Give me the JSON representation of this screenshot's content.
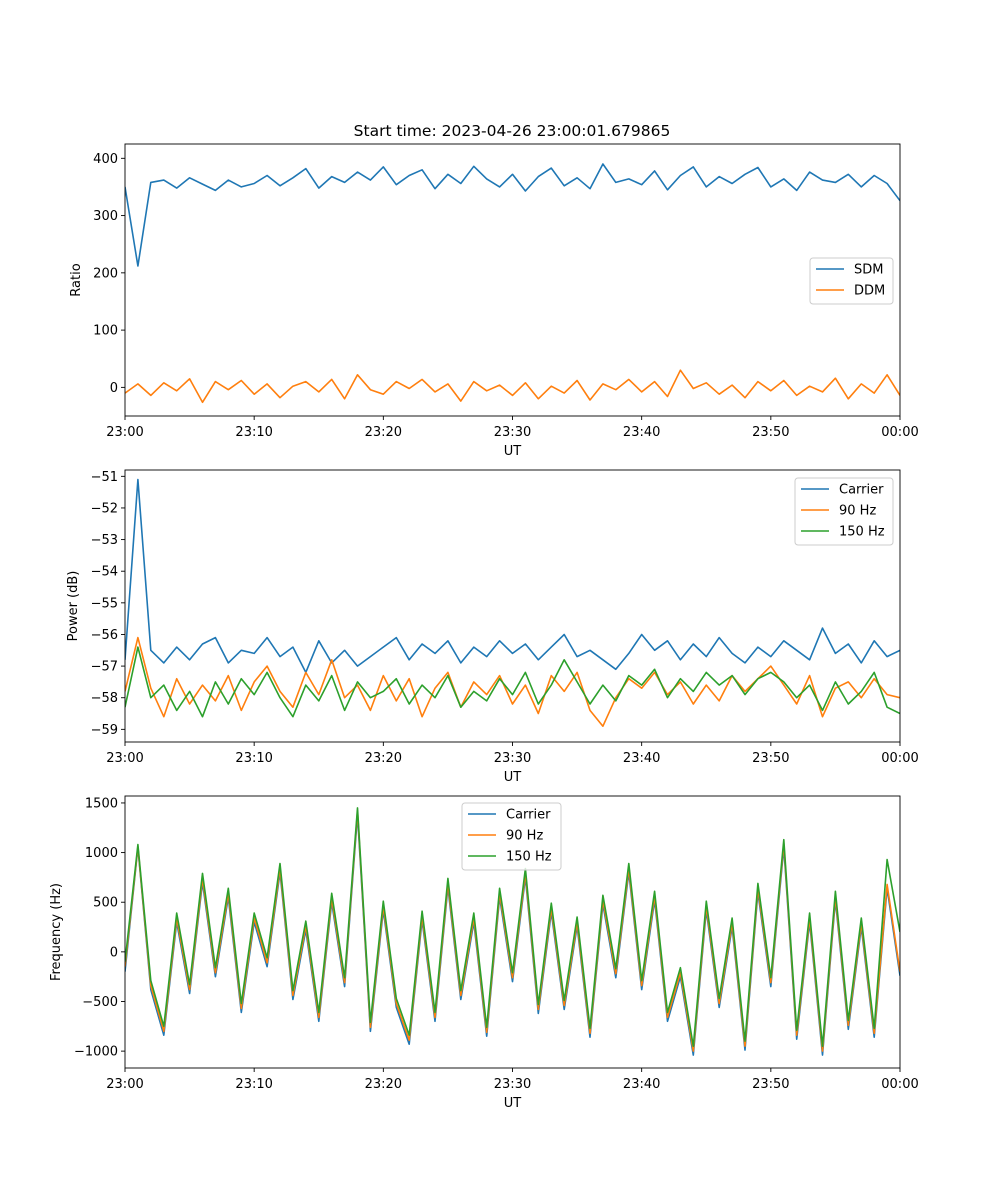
{
  "figure": {
    "title": "Start time: 2023-04-26 23:00:01.679865"
  },
  "colors": {
    "blue": "#1f77b4",
    "orange": "#ff7f0e",
    "green": "#2ca02c"
  },
  "chart_data": [
    {
      "type": "line",
      "title": "Start time: 2023-04-26 23:00:01.679865",
      "xlabel": "UT",
      "ylabel": "Ratio",
      "xlim": [
        "23:00",
        "00:00"
      ],
      "x_ticks": [
        "23:00",
        "23:10",
        "23:20",
        "23:30",
        "23:40",
        "23:50",
        "00:00"
      ],
      "ylim": [
        -50,
        425
      ],
      "y_ticks": [
        0,
        100,
        200,
        300,
        400
      ],
      "y_tick_labels": [
        "0",
        "100",
        "200",
        "300",
        "400"
      ],
      "legend": "center-right",
      "x": [
        "23:00",
        "23:01",
        "23:02",
        "23:03",
        "23:04",
        "23:05",
        "23:06",
        "23:07",
        "23:08",
        "23:09",
        "23:10",
        "23:11",
        "23:12",
        "23:13",
        "23:14",
        "23:15",
        "23:16",
        "23:17",
        "23:18",
        "23:19",
        "23:20",
        "23:21",
        "23:22",
        "23:23",
        "23:24",
        "23:25",
        "23:26",
        "23:27",
        "23:28",
        "23:29",
        "23:30",
        "23:31",
        "23:32",
        "23:33",
        "23:34",
        "23:35",
        "23:36",
        "23:37",
        "23:38",
        "23:39",
        "23:40",
        "23:41",
        "23:42",
        "23:43",
        "23:44",
        "23:45",
        "23:46",
        "23:47",
        "23:48",
        "23:49",
        "23:50",
        "23:51",
        "23:52",
        "23:53",
        "23:54",
        "23:55",
        "23:56",
        "23:57",
        "23:58",
        "23:59",
        "00:00"
      ],
      "series": [
        {
          "name": "SDM",
          "color": "#1f77b4",
          "values": [
            350,
            212,
            358,
            362,
            348,
            366,
            355,
            344,
            362,
            350,
            356,
            370,
            352,
            366,
            382,
            348,
            368,
            358,
            376,
            362,
            385,
            354,
            370,
            380,
            347,
            372,
            356,
            386,
            364,
            350,
            372,
            343,
            368,
            383,
            352,
            366,
            347,
            390,
            358,
            364,
            354,
            378,
            345,
            370,
            385,
            350,
            368,
            356,
            372,
            384,
            350,
            364,
            344,
            376,
            362,
            358,
            372,
            350,
            370,
            356,
            326
          ]
        },
        {
          "name": "DDM",
          "color": "#ff7f0e",
          "values": [
            -10,
            6,
            -14,
            8,
            -6,
            15,
            -26,
            10,
            -4,
            12,
            -12,
            6,
            -18,
            2,
            10,
            -8,
            14,
            -20,
            22,
            -4,
            -12,
            10,
            -2,
            14,
            -8,
            6,
            -24,
            10,
            -6,
            4,
            -14,
            8,
            -20,
            2,
            -10,
            12,
            -22,
            6,
            -4,
            14,
            -8,
            10,
            -16,
            30,
            -2,
            8,
            -12,
            4,
            -18,
            10,
            -6,
            12,
            -14,
            2,
            -8,
            16,
            -20,
            6,
            -10,
            22,
            -14
          ]
        }
      ]
    },
    {
      "type": "line",
      "xlabel": "UT",
      "ylabel": "Power (dB)",
      "xlim": [
        "23:00",
        "00:00"
      ],
      "x_ticks": [
        "23:00",
        "23:10",
        "23:20",
        "23:30",
        "23:40",
        "23:50",
        "00:00"
      ],
      "ylim": [
        -59.4,
        -50.8
      ],
      "y_ticks": [
        -59,
        -58,
        -57,
        -56,
        -55,
        -54,
        -53,
        -52,
        -51
      ],
      "y_tick_labels": [
        "−59",
        "−58",
        "−57",
        "−56",
        "−55",
        "−54",
        "−53",
        "−52",
        "−51"
      ],
      "legend": "top-right",
      "x": [
        "23:00",
        "23:01",
        "23:02",
        "23:03",
        "23:04",
        "23:05",
        "23:06",
        "23:07",
        "23:08",
        "23:09",
        "23:10",
        "23:11",
        "23:12",
        "23:13",
        "23:14",
        "23:15",
        "23:16",
        "23:17",
        "23:18",
        "23:19",
        "23:20",
        "23:21",
        "23:22",
        "23:23",
        "23:24",
        "23:25",
        "23:26",
        "23:27",
        "23:28",
        "23:29",
        "23:30",
        "23:31",
        "23:32",
        "23:33",
        "23:34",
        "23:35",
        "23:36",
        "23:37",
        "23:38",
        "23:39",
        "23:40",
        "23:41",
        "23:42",
        "23:43",
        "23:44",
        "23:45",
        "23:46",
        "23:47",
        "23:48",
        "23:49",
        "23:50",
        "23:51",
        "23:52",
        "23:53",
        "23:54",
        "23:55",
        "23:56",
        "23:57",
        "23:58",
        "23:59",
        "00:00"
      ],
      "series": [
        {
          "name": "Carrier",
          "color": "#1f77b4",
          "values": [
            -56.8,
            -51.1,
            -56.5,
            -56.9,
            -56.4,
            -56.8,
            -56.3,
            -56.1,
            -56.9,
            -56.5,
            -56.6,
            -56.1,
            -56.7,
            -56.4,
            -57.2,
            -56.2,
            -56.9,
            -56.5,
            -57.0,
            -56.7,
            -56.4,
            -56.1,
            -56.8,
            -56.3,
            -56.6,
            -56.2,
            -56.9,
            -56.4,
            -56.7,
            -56.2,
            -56.6,
            -56.3,
            -56.8,
            -56.4,
            -56.0,
            -56.7,
            -56.5,
            -56.8,
            -57.1,
            -56.6,
            -56.0,
            -56.5,
            -56.2,
            -56.8,
            -56.3,
            -56.7,
            -56.1,
            -56.6,
            -56.9,
            -56.4,
            -56.7,
            -56.2,
            -56.5,
            -56.8,
            -55.8,
            -56.6,
            -56.3,
            -56.9,
            -56.2,
            -56.7,
            -56.5
          ]
        },
        {
          "name": "90 Hz",
          "color": "#ff7f0e",
          "values": [
            -57.8,
            -56.1,
            -57.7,
            -58.6,
            -57.4,
            -58.2,
            -57.6,
            -58.1,
            -57.3,
            -58.4,
            -57.5,
            -57.0,
            -57.8,
            -58.3,
            -57.2,
            -57.9,
            -56.8,
            -58.0,
            -57.6,
            -58.4,
            -57.3,
            -58.1,
            -57.4,
            -58.6,
            -57.7,
            -57.2,
            -58.3,
            -57.5,
            -57.9,
            -57.3,
            -58.2,
            -57.6,
            -58.5,
            -57.3,
            -57.8,
            -57.2,
            -58.4,
            -58.9,
            -58.0,
            -57.4,
            -57.7,
            -57.2,
            -57.9,
            -57.5,
            -58.2,
            -57.6,
            -58.1,
            -57.3,
            -57.8,
            -57.4,
            -57.0,
            -57.6,
            -58.2,
            -57.3,
            -58.6,
            -57.7,
            -57.5,
            -58.0,
            -57.4,
            -57.9,
            -58.0
          ]
        },
        {
          "name": "150 Hz",
          "color": "#2ca02c",
          "values": [
            -58.3,
            -56.4,
            -58.0,
            -57.6,
            -58.4,
            -57.8,
            -58.6,
            -57.5,
            -58.2,
            -57.4,
            -57.9,
            -57.2,
            -58.0,
            -58.6,
            -57.6,
            -58.1,
            -57.3,
            -58.4,
            -57.5,
            -58.0,
            -57.8,
            -57.4,
            -58.2,
            -57.6,
            -58.0,
            -57.3,
            -58.3,
            -57.8,
            -58.1,
            -57.4,
            -57.9,
            -57.2,
            -58.2,
            -57.6,
            -56.8,
            -57.5,
            -58.2,
            -57.6,
            -58.1,
            -57.3,
            -57.6,
            -57.1,
            -58.0,
            -57.4,
            -57.8,
            -57.2,
            -57.6,
            -57.3,
            -57.9,
            -57.4,
            -57.2,
            -57.5,
            -58.0,
            -57.6,
            -58.4,
            -57.5,
            -58.2,
            -57.8,
            -57.2,
            -58.3,
            -58.5
          ]
        }
      ]
    },
    {
      "type": "line",
      "xlabel": "UT",
      "ylabel": "Frequency (Hz)",
      "xlim": [
        "23:00",
        "00:00"
      ],
      "x_ticks": [
        "23:00",
        "23:10",
        "23:20",
        "23:30",
        "23:40",
        "23:50",
        "00:00"
      ],
      "ylim": [
        -1170,
        1570
      ],
      "y_ticks": [
        -1000,
        -500,
        0,
        500,
        1000,
        1500
      ],
      "y_tick_labels": [
        "−1000",
        "−500",
        "0",
        "500",
        "1000",
        "1500"
      ],
      "legend": "top-center",
      "x": [
        "23:00",
        "23:01",
        "23:02",
        "23:03",
        "23:04",
        "23:05",
        "23:06",
        "23:07",
        "23:08",
        "23:09",
        "23:10",
        "23:11",
        "23:12",
        "23:13",
        "23:14",
        "23:15",
        "23:16",
        "23:17",
        "23:18",
        "23:19",
        "23:20",
        "23:21",
        "23:22",
        "23:23",
        "23:24",
        "23:25",
        "23:26",
        "23:27",
        "23:28",
        "23:29",
        "23:30",
        "23:31",
        "23:32",
        "23:33",
        "23:34",
        "23:35",
        "23:36",
        "23:37",
        "23:38",
        "23:39",
        "23:40",
        "23:41",
        "23:42",
        "23:43",
        "23:44",
        "23:45",
        "23:46",
        "23:47",
        "23:48",
        "23:49",
        "23:50",
        "23:51",
        "23:52",
        "23:53",
        "23:54",
        "23:55",
        "23:56",
        "23:57",
        "23:58",
        "23:59",
        "00:00"
      ],
      "series": [
        {
          "name": "Carrier",
          "color": "#1f77b4",
          "values": [
            -200,
            1050,
            -380,
            -840,
            300,
            -420,
            700,
            -250,
            550,
            -610,
            300,
            -150,
            800,
            -480,
            220,
            -700,
            500,
            -350,
            1380,
            -800,
            420,
            -560,
            -930,
            320,
            -700,
            650,
            -480,
            300,
            -850,
            550,
            -300,
            750,
            -620,
            400,
            -580,
            260,
            -860,
            480,
            -260,
            800,
            -380,
            520,
            -700,
            -250,
            -1040,
            420,
            -560,
            250,
            -990,
            600,
            -350,
            1050,
            -880,
            300,
            -1040,
            520,
            -780,
            250,
            -860,
            640,
            -240
          ]
        },
        {
          "name": "90 Hz",
          "color": "#ff7f0e",
          "values": [
            -150,
            1060,
            -340,
            -800,
            340,
            -380,
            740,
            -210,
            590,
            -570,
            340,
            -110,
            840,
            -440,
            260,
            -660,
            540,
            -310,
            1420,
            -760,
            460,
            -520,
            -890,
            360,
            -660,
            690,
            -440,
            340,
            -810,
            590,
            -260,
            790,
            -580,
            440,
            -540,
            300,
            -820,
            520,
            -220,
            840,
            -340,
            560,
            -660,
            -210,
            -1000,
            460,
            -520,
            290,
            -950,
            640,
            -310,
            1090,
            -840,
            340,
            -1000,
            560,
            -740,
            290,
            -820,
            680,
            -200
          ]
        },
        {
          "name": "150 Hz",
          "color": "#2ca02c",
          "values": [
            -100,
            1080,
            -290,
            -750,
            390,
            -330,
            790,
            -160,
            640,
            -520,
            390,
            -60,
            890,
            -390,
            310,
            -610,
            590,
            -260,
            1450,
            -710,
            510,
            -470,
            -840,
            410,
            -610,
            740,
            -390,
            390,
            -760,
            640,
            -210,
            840,
            -530,
            490,
            -490,
            350,
            -770,
            570,
            -170,
            890,
            -290,
            610,
            -610,
            -160,
            -950,
            510,
            -470,
            340,
            -900,
            690,
            -260,
            1130,
            -790,
            390,
            -950,
            610,
            -690,
            340,
            -770,
            930,
            200
          ]
        }
      ]
    }
  ]
}
